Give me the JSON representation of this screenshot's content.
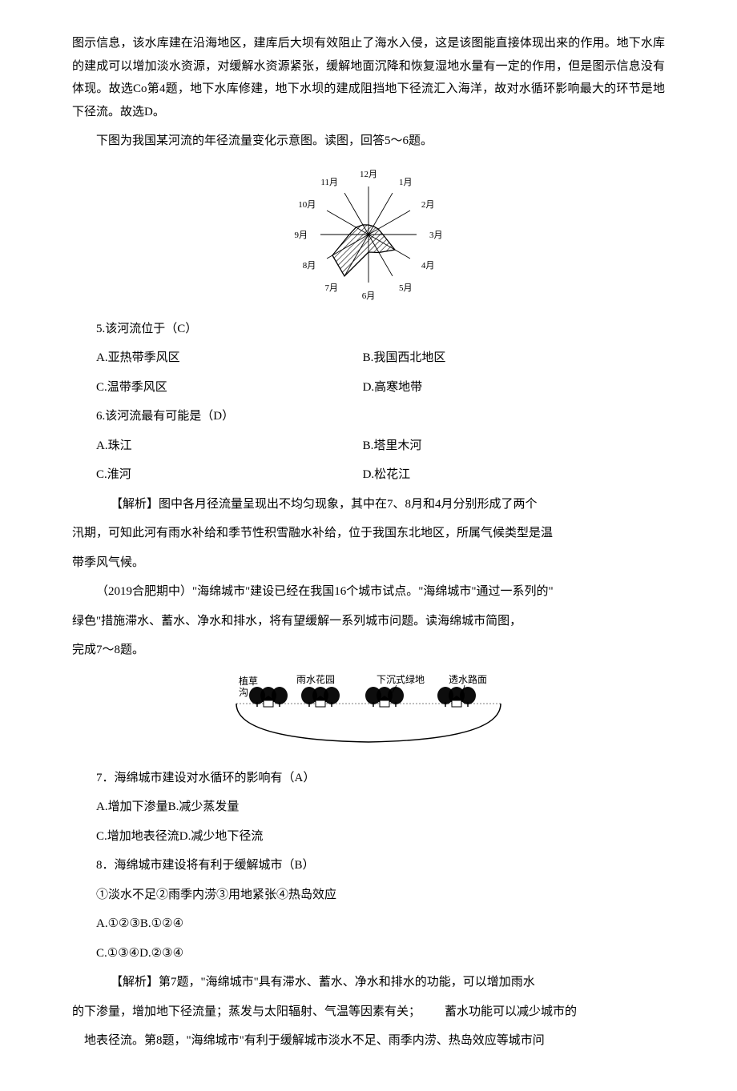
{
  "intro_para": "图示信息，该水库建在沿海地区，建库后大坝有效阻止了海水入侵，这是该图能直接体现出来的作用。地下水库的建成可以增加淡水资源，对缓解水资源紧张，缓解地面沉降和恢复湿地水量有一定的作用，但是图示信息没有体现。故选Co第4题，地下水库修建，地下水坝的建成阻挡地下径流汇入海洋，故对水循环影响最大的环节是地下径流。故选D。",
  "sec1_intro": "下图为我国某河流的年径流量变化示意图。读图，回答5～6题。",
  "radar": {
    "months": [
      "1月",
      "2月",
      "3月",
      "4月",
      "5月",
      "6月",
      "7月",
      "8月",
      "9月",
      "10月",
      "11月",
      "12月"
    ],
    "values": [
      12,
      14,
      18,
      38,
      26,
      22,
      60,
      52,
      24,
      18,
      14,
      12
    ],
    "max_radius": 60,
    "stroke": "#000000",
    "fill_pattern": "diagonal-hatch",
    "bg": "#ffffff"
  },
  "q5": {
    "stem": "5.该河流位于（C）",
    "A": "A.亚热带季风区",
    "B": "B.我国西北地区",
    "C": "C.温带季风区",
    "D": "D.高寒地带"
  },
  "q6": {
    "stem": "6.该河流最有可能是（D）",
    "A": "A.珠江",
    "B": "B.塔里木河",
    "C": "C.淮河",
    "D": "D.松花江"
  },
  "analysis1_lead": "【解析】图中各月径流量呈现出不均匀现象，其中在7、8月和4月分别形成了两个",
  "analysis1_line2": "汛期，可知此河有雨水补给和季节性积雪融水补给，位于我国东北地区，所属气候类型是温",
  "analysis1_line3": "带季风气候。",
  "sec2_intro_lead": "（2019合肥期中）\"海绵城市\"建设已经在我国16个城市试点。\"海绵城市\"通过一系列的\"",
  "sec2_intro_line2": "绿色\"措施滞水、蓄水、净水和排水，将有望缓解一系列城市问题。读海绵城市简图，",
  "sec2_intro_line3": "完成7～8题。",
  "sponge_labels": {
    "l1": "植草",
    "l1b": "沟",
    "l2": "雨水花园",
    "l3": "下沉式绿地",
    "l4": "透水路面"
  },
  "q7": {
    "stem": "7．海绵城市建设对水循环的影响有（A）",
    "A": "A.增加下渗量B.减少蒸发量",
    "C": "C.增加地表径流D.减少地下径流"
  },
  "q8": {
    "stem": "8．海绵城市建设将有利于缓解城市（B）",
    "opts": "①淡水不足②雨季内涝③用地紧张④热岛效应",
    "A": "A.①②③B.①②④",
    "C": "C.①③④D.②③④"
  },
  "analysis2_lead": "【解析】第7题，\"海绵城市\"具有滞水、蓄水、净水和排水的功能，可以增加雨水",
  "analysis2_line2_a": "的下渗量，增加地下径流量；蒸发与太阳辐射、气温等因素有关；",
  "analysis2_line2_b": "蓄水功能可以减少城市的",
  "analysis2_line3": "地表径流。第8题，\"海绵城市\"有利于缓解城市淡水不足、雨季内涝、热岛效应等城市问",
  "colors": {
    "text": "#000000",
    "bg": "#ffffff"
  }
}
